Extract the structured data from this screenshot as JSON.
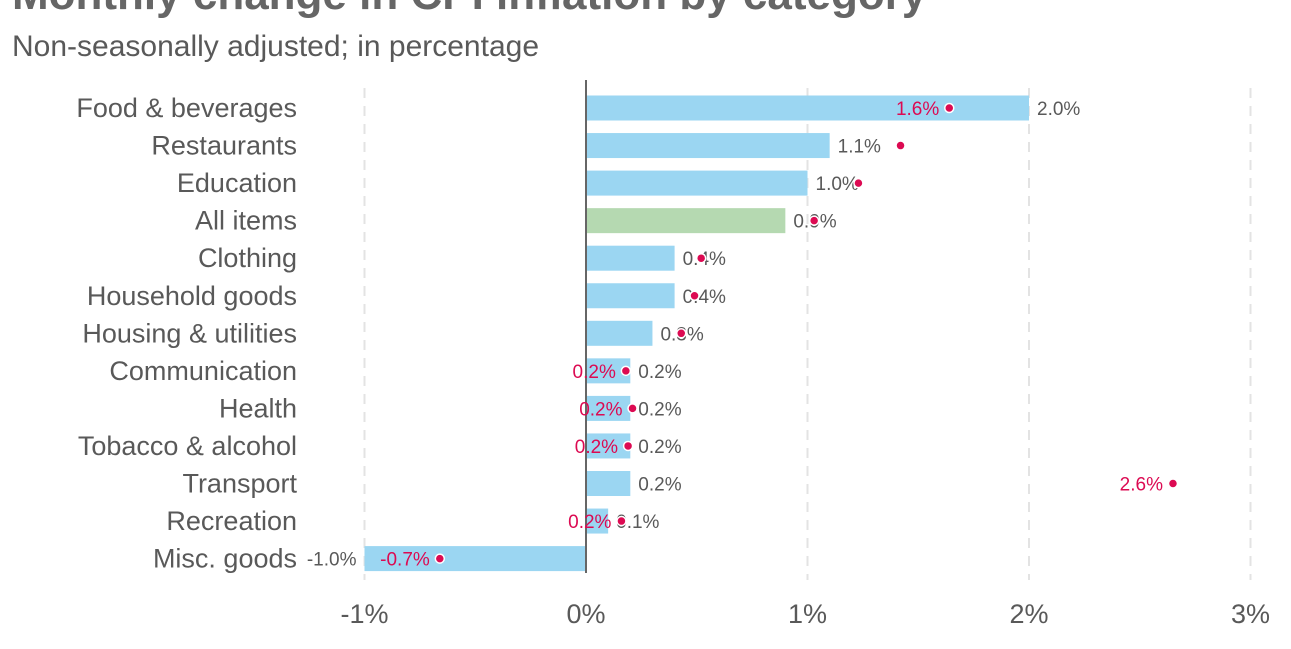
{
  "colors": {
    "bar": "#9bd6f2",
    "highlight_bar": "#b5d9b1",
    "point": "#dc0a52",
    "grid": "#e3e3e3",
    "axis": "#666666",
    "text": "#595959"
  },
  "chart_data": {
    "type": "bar",
    "orientation": "horizontal",
    "title": "Monthly change in CPI inflation by category",
    "subtitle": "Non-seasonally adjusted; in percentage",
    "categories": [
      "Food & beverages",
      "Restaurants",
      "Education",
      "All items",
      "Clothing",
      "Household goods",
      "Housing & utilities",
      "Communication",
      "Health",
      "Tobacco & alcohol",
      "Transport",
      "Recreation",
      "Misc. goods"
    ],
    "highlight_category": "All items",
    "series": [
      {
        "values": [
          2.0,
          1.1,
          1.0,
          0.9,
          0.4,
          0.4,
          0.3,
          0.2,
          0.2,
          0.2,
          0.2,
          0.1,
          -1.0
        ],
        "labels": [
          "2.0%",
          "1.1%",
          "1.0%",
          "0.9%",
          "0.4%",
          "0.4%",
          "0.3%",
          "0.2%",
          "0.2%",
          "0.2%",
          "0.2%",
          "0.1%",
          "-1.0%"
        ]
      },
      {
        "values": [
          1.64,
          1.42,
          1.23,
          1.03,
          0.52,
          0.49,
          0.43,
          0.18,
          0.21,
          0.19,
          2.65,
          0.16,
          -0.66
        ],
        "labels": [
          "1.6%",
          "",
          "",
          "",
          "",
          "",
          "",
          "0.2%",
          "0.2%",
          "0.2%",
          "2.6%",
          "0.2%",
          "-0.7%"
        ]
      }
    ],
    "xticks": [
      -1,
      0,
      1,
      2,
      3
    ],
    "xtick_labels": [
      "-1%",
      "0%",
      "1%",
      "2%",
      "3%"
    ],
    "xlim": [
      -1.0,
      3.0
    ],
    "grid": true
  }
}
